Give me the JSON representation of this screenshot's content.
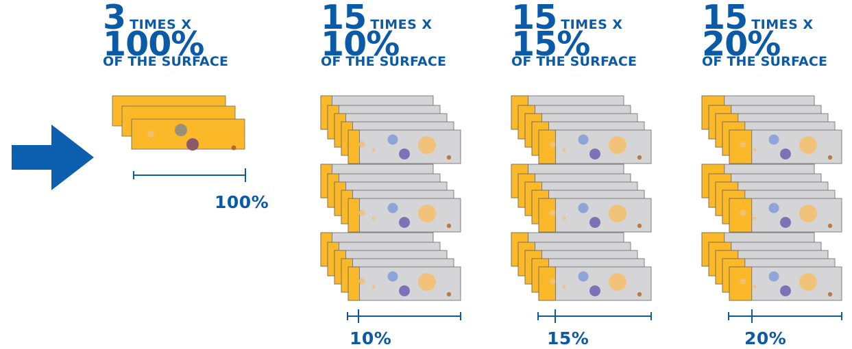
{
  "colors": {
    "primary_blue": "#0a5aa8",
    "arrow_blue": "#0b5fae",
    "yellow": "#fbb829",
    "slide_gray": "#d5d5d8",
    "circle_blue": "#8fa5d8",
    "circle_purple": "#7e72b6",
    "circle_peach": "#f0c27a",
    "circle_brown": "#b77b45"
  },
  "arrow_icon": "right-arrow-icon",
  "columns": [
    {
      "count": "3",
      "times_label": "TIMES X",
      "percent": "100%",
      "surface_label": "OF THE SURFACE",
      "covered_fraction": 1.0,
      "scale_label": "100%",
      "stacks": 1
    },
    {
      "count": "15",
      "times_label": "TIMES X",
      "percent": "10%",
      "surface_label": "OF THE SURFACE",
      "covered_fraction": 0.1,
      "scale_label": "10%",
      "stacks": 3
    },
    {
      "count": "15",
      "times_label": "TIMES X",
      "percent": "15%",
      "surface_label": "OF THE SURFACE",
      "covered_fraction": 0.15,
      "scale_label": "15%",
      "stacks": 3
    },
    {
      "count": "15",
      "times_label": "TIMES X",
      "percent": "20%",
      "surface_label": "OF THE SURFACE",
      "covered_fraction": 0.2,
      "scale_label": "20%",
      "stacks": 3
    }
  ]
}
